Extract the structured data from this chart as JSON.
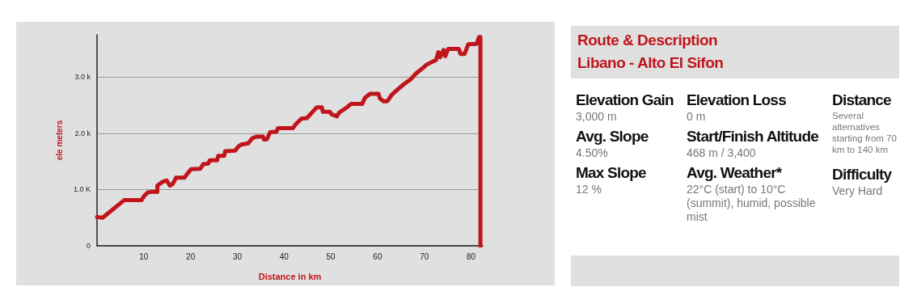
{
  "chart_data": [
    {
      "type": "line",
      "xlabel": "Distance in km",
      "ylabel": "ele meters",
      "color": "#c0151b",
      "x": [
        0,
        1.2,
        5.8,
        9.5,
        10.1,
        10.9,
        11.8,
        12.9,
        12.9,
        14.1,
        14.9,
        15.6,
        16.2,
        16.9,
        18.7,
        19.3,
        20.1,
        22.1,
        22.7,
        23.8,
        24.1,
        25.7,
        25.9,
        27.2,
        27.4,
        29.5,
        30.3,
        30.9,
        32.3,
        33.2,
        34.1,
        35.5,
        35.7,
        36.3,
        36.7,
        37,
        38.4,
        38.7,
        41.9,
        42.5,
        43.7,
        44.9,
        46.1,
        47,
        48.1,
        48.3,
        49.8,
        50.1,
        51.3,
        51.8,
        53.3,
        54.3,
        56.7,
        57.3,
        58.4,
        60.2,
        60.5,
        61.3,
        62.1,
        63,
        64.2,
        65.6,
        67.1,
        68.2,
        69.7,
        70.5,
        71.7,
        72.5,
        73,
        73.4,
        74.1,
        74.5,
        75.1,
        77.4,
        77.7,
        78.6,
        79.4,
        81.2,
        81.7,
        82,
        82
      ],
      "values": [
        510,
        500,
        810,
        810,
        890,
        950,
        960,
        960,
        1070,
        1140,
        1160,
        1070,
        1100,
        1210,
        1210,
        1280,
        1360,
        1370,
        1450,
        1460,
        1520,
        1520,
        1600,
        1600,
        1680,
        1690,
        1770,
        1800,
        1820,
        1910,
        1940,
        1940,
        1890,
        1890,
        1960,
        2020,
        2030,
        2090,
        2090,
        2160,
        2260,
        2270,
        2380,
        2460,
        2460,
        2380,
        2380,
        2340,
        2300,
        2370,
        2450,
        2520,
        2520,
        2630,
        2700,
        2700,
        2620,
        2570,
        2570,
        2680,
        2770,
        2870,
        2960,
        3060,
        3160,
        3220,
        3270,
        3300,
        3440,
        3350,
        3480,
        3370,
        3500,
        3500,
        3410,
        3410,
        3580,
        3590,
        3710,
        3710,
        0
      ],
      "xlim": [
        0,
        82.5
      ],
      "xticks": [
        10,
        20,
        30,
        40,
        50,
        60,
        70,
        80
      ],
      "ylim": [
        0,
        3750
      ],
      "yticks": [
        0,
        {
          "value": 1000,
          "label": "1.0 K"
        },
        {
          "value": 2000,
          "label": "2.0 k"
        },
        {
          "value": 3000,
          "label": "3.0 k"
        }
      ],
      "grid": "y",
      "marker": "none",
      "line_style": "solid"
    },
    {
      "type": "other",
      "title": "Route & Description",
      "subtitle": "Libano - Alto El Sifon",
      "annotations": [
        "Elevation Gain",
        "3,000 m",
        "Avg. Slope",
        "4.50%",
        "Max Slope",
        "12 %",
        "Elevation Loss",
        "0 m",
        "Start/Finish Altitude",
        "468 m / 3,400",
        "Avg. Weather*",
        "22°C (start) to 10°C (summit), humid, possible mist",
        "Distance",
        "Several alternatives starting from 70 km to 140 km",
        "Difficulty",
        "Very Hard"
      ]
    }
  ]
}
